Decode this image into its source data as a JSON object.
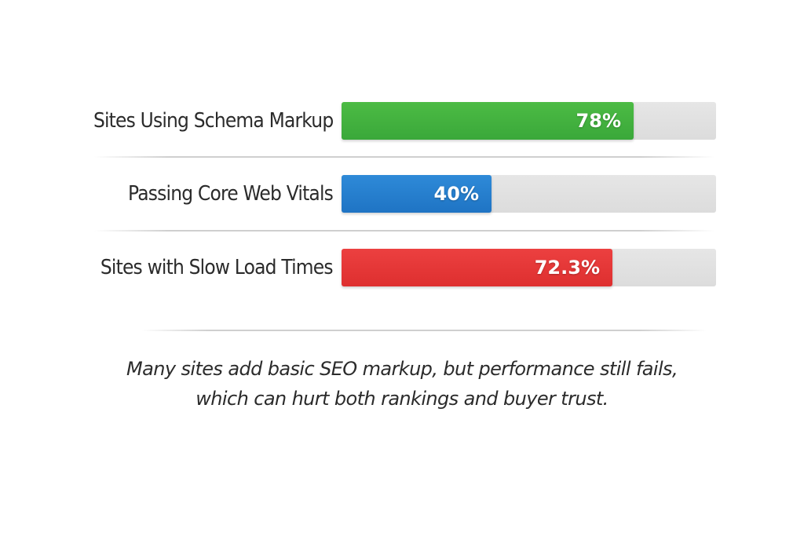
{
  "chart_data": {
    "type": "bar",
    "orientation": "horizontal",
    "categories": [
      "Sites Using Schema Markup",
      "Passing Core Web Vitals",
      "Sites with Slow Load Times"
    ],
    "values": [
      78,
      40,
      72.3
    ],
    "value_labels": [
      "78%",
      "40%",
      "72.3%"
    ],
    "unit": "%",
    "xlim": [
      0,
      100
    ],
    "bar_colors": [
      "#3aa83a",
      "#1f74c4",
      "#de2f2f"
    ],
    "grid": false,
    "legend": "none"
  },
  "caption": {
    "line1": "Many sites add basic SEO markup, but performance still fails,",
    "line2": "which can hurt both rankings and buyer trust."
  },
  "colors": {
    "green": "#3aa83a",
    "blue": "#1f74c4",
    "red": "#de2f2f",
    "track": "#e2e2e2",
    "text": "#2b2b2b"
  }
}
